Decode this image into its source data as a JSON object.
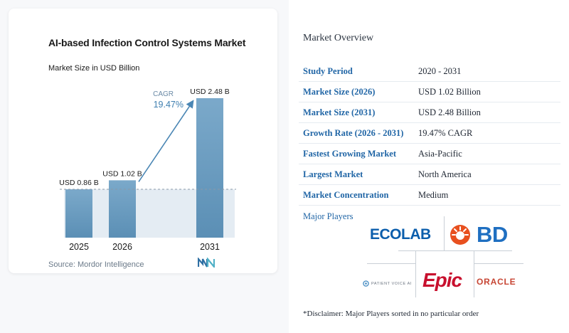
{
  "chart_data": {
    "type": "bar",
    "title": "AI-based Infection Control Systems Market",
    "subtitle": "Market Size in USD Billion",
    "categories": [
      "2025",
      "2026",
      "2031"
    ],
    "values": [
      0.86,
      1.02,
      2.48
    ],
    "data_labels": [
      "USD 0.86 B",
      "USD 1.02 B",
      "USD 2.48 B"
    ],
    "cagr_label": "CAGR",
    "cagr_value": "19.47%",
    "xlabel": "",
    "ylabel": "",
    "ylim": [
      0,
      2.48
    ],
    "grid": false,
    "colors": {
      "bar": "#5f93b8",
      "bar_top": "#7aa9cb",
      "cagr": "#3f7fb0",
      "baseline": "#9aa9b6"
    }
  },
  "source": "Source: Mordor Intelligence",
  "overview": {
    "title": "Market Overview",
    "rows": [
      {
        "key": "Study Period",
        "value": "2020 - 2031"
      },
      {
        "key": "Market Size (2026)",
        "value": "USD 1.02 Billion"
      },
      {
        "key": "Market Size (2031)",
        "value": "USD 2.48 Billion"
      },
      {
        "key": "Growth Rate (2026 - 2031)",
        "value": "19.47% CAGR"
      },
      {
        "key": "Fastest Growing Market",
        "value": "Asia-Pacific"
      },
      {
        "key": "Largest Market",
        "value": "North America"
      },
      {
        "key": "Market Concentration",
        "value": "Medium"
      }
    ],
    "players_title": "Major Players",
    "logos": {
      "ecolab": "ECOLAB",
      "bd": "BD",
      "patient_voice": "PATIENT VOICE AI",
      "epic": "Epic",
      "oracle": "ORACLE"
    },
    "disclaimer": "*Disclaimer: Major Players sorted in no particular order"
  }
}
